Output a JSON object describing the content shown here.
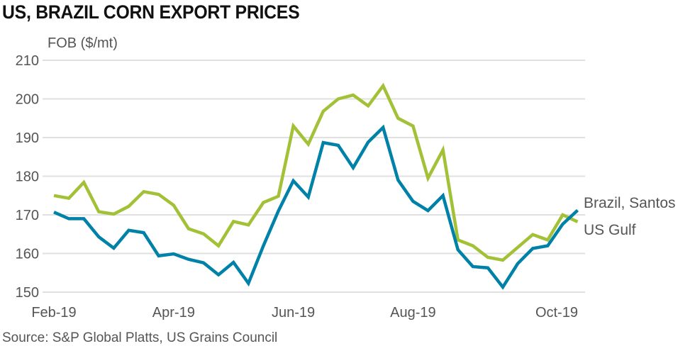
{
  "chart_data": {
    "type": "line",
    "title": "US, BRAZIL CORN EXPORT PRICES",
    "ylabel": "FOB ($/mt)",
    "source": "Source: S&P Global Platts, US Grains Council",
    "ylim": [
      150,
      210
    ],
    "yticks": [
      150,
      160,
      170,
      180,
      190,
      200,
      210
    ],
    "xticks": [
      "Feb-19",
      "Apr-19",
      "Jun-19",
      "Aug-19",
      "Oct-19"
    ],
    "frequency": "weekly",
    "grid": true,
    "series": [
      {
        "name": "Brazil, Santos",
        "color": "#0081a8",
        "values": [
          170.7,
          169,
          169,
          164.3,
          161.4,
          166,
          165.4,
          159.4,
          159.9,
          158.5,
          157.6,
          154.5,
          157.7,
          152.3,
          162,
          171,
          178.8,
          174.6,
          188.7,
          188,
          182.2,
          188.8,
          192.6,
          179,
          173.5,
          171.1,
          175,
          161,
          156.6,
          156.3,
          151.3,
          157.4,
          161.3,
          162,
          167.6,
          171.2
        ]
      },
      {
        "name": "US Gulf",
        "color": "#a2c137",
        "values": [
          175,
          174.3,
          178.4,
          170.8,
          170.2,
          172.2,
          176,
          175.3,
          172.5,
          166.4,
          165.1,
          162,
          168.3,
          167.4,
          173.2,
          174.8,
          193,
          188.3,
          196.8,
          200,
          201,
          198.2,
          203.4,
          195,
          193,
          179.5,
          186.8,
          163.5,
          162,
          159,
          158.3,
          161.6,
          164.9,
          163.5,
          170,
          168.2
        ]
      }
    ]
  }
}
